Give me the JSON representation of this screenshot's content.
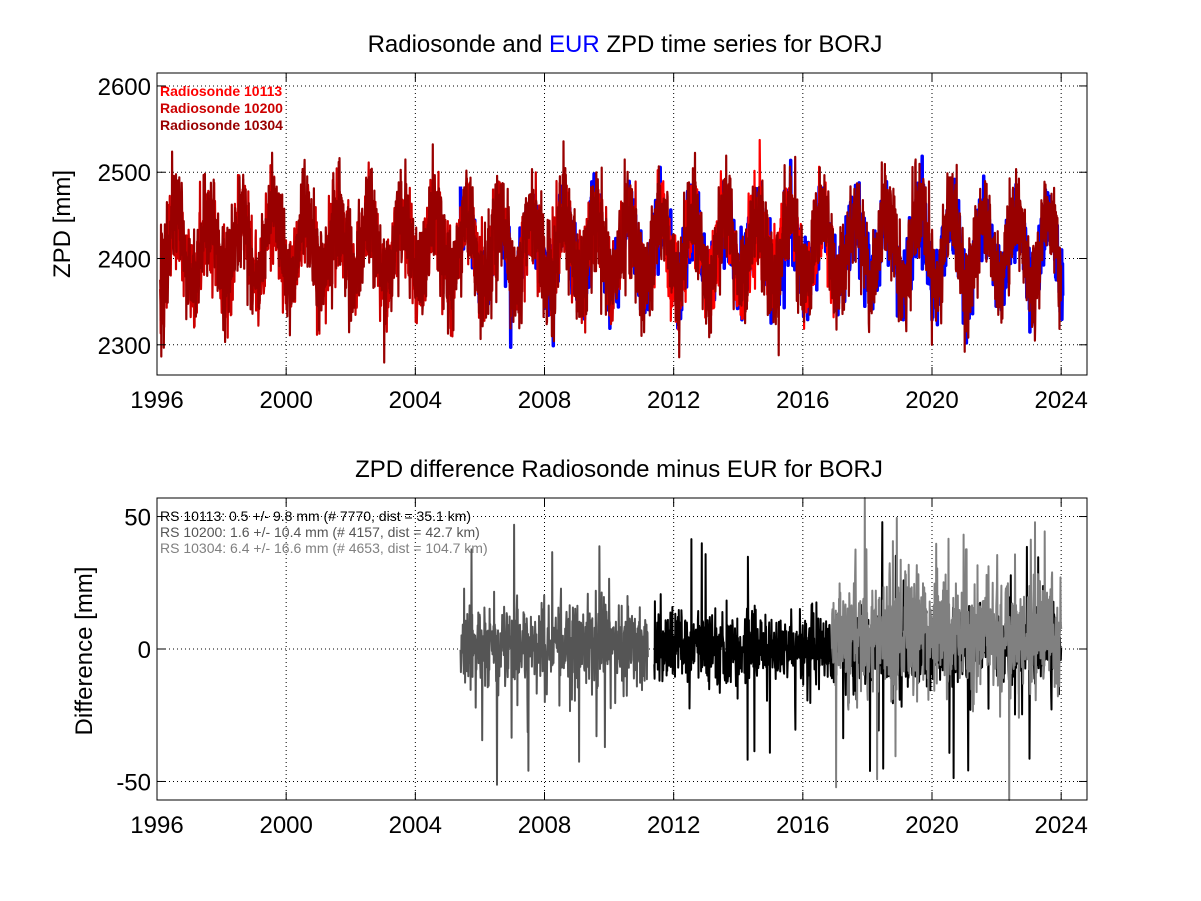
{
  "colors": {
    "background": "#ffffff",
    "eur_series": "#0000ff",
    "rs_10113": "#ff0000",
    "rs_10200": "#cc0000",
    "rs_10304": "#990000",
    "diff_10113": "#000000",
    "diff_10200": "#555555",
    "diff_10304": "#808080",
    "grid": "#000000"
  },
  "chart_data": [
    {
      "type": "line",
      "title_parts": [
        {
          "text": "Radiosonde and ",
          "color": "#000000"
        },
        {
          "text": "EUR",
          "color": "#0000ff"
        },
        {
          "text": " ZPD time series for BORJ",
          "color": "#000000"
        }
      ],
      "xlabel": "",
      "ylabel": "ZPD [mm]",
      "xlim": [
        1996,
        2024.8
      ],
      "ylim": [
        2265,
        2615
      ],
      "xticks": [
        1996,
        2000,
        2004,
        2008,
        2012,
        2016,
        2020,
        2024
      ],
      "yticks": [
        2300,
        2400,
        2500,
        2600
      ],
      "grid": "dotted",
      "legend": "top-left",
      "series": [
        {
          "name": "EUR",
          "color": "#0000ff",
          "x_start": 2005.4,
          "x_end": 2024.05,
          "mean": 2410,
          "amplitude": 40,
          "noise": 22
        },
        {
          "name": "Radiosonde 10113",
          "color": "#ff0000",
          "x_start": 2011.4,
          "x_end": 2017.0,
          "mean": 2410,
          "amplitude": 40,
          "noise": 25
        },
        {
          "name": "Radiosonde 10200",
          "color": "#cc0000",
          "x_start": 1996.1,
          "x_end": 2011.2,
          "mean": 2410,
          "amplitude": 38,
          "noise": 26
        },
        {
          "name": "Radiosonde 10304",
          "color": "#990000",
          "x_start": 1996.1,
          "x_end": 2024.0,
          "mean": 2412,
          "amplitude": 40,
          "noise": 28
        }
      ]
    },
    {
      "type": "line",
      "title": "ZPD difference Radiosonde minus EUR for BORJ",
      "xlabel": "",
      "ylabel": "Difference [mm]",
      "xlim": [
        1996,
        2024.8
      ],
      "ylim": [
        -57,
        57
      ],
      "xticks": [
        1996,
        2000,
        2004,
        2008,
        2012,
        2016,
        2020,
        2024
      ],
      "yticks": [
        -50,
        0,
        50
      ],
      "grid": "dotted",
      "legend": "top-left",
      "series": [
        {
          "name": "RS 10113: 0.5 +/- 9.8 mm (# 7770, dist =  35.1 km)",
          "color": "#000000",
          "x_start": 2011.4,
          "x_end": 2024.0,
          "mean": 0.5,
          "std": 9.8,
          "count": 7770
        },
        {
          "name": "RS 10200: 1.6 +/- 10.4 mm (# 4157, dist =  42.7 km)",
          "color": "#555555",
          "x_start": 2005.4,
          "x_end": 2011.2,
          "mean": 1.6,
          "std": 10.4,
          "count": 4157
        },
        {
          "name": "RS 10304: 6.4 +/- 16.6 mm (# 4653, dist = 104.7 km)",
          "color": "#808080",
          "x_start": 2016.9,
          "x_end": 2024.0,
          "mean": 6.4,
          "std": 16.6,
          "count": 4653
        }
      ]
    }
  ]
}
